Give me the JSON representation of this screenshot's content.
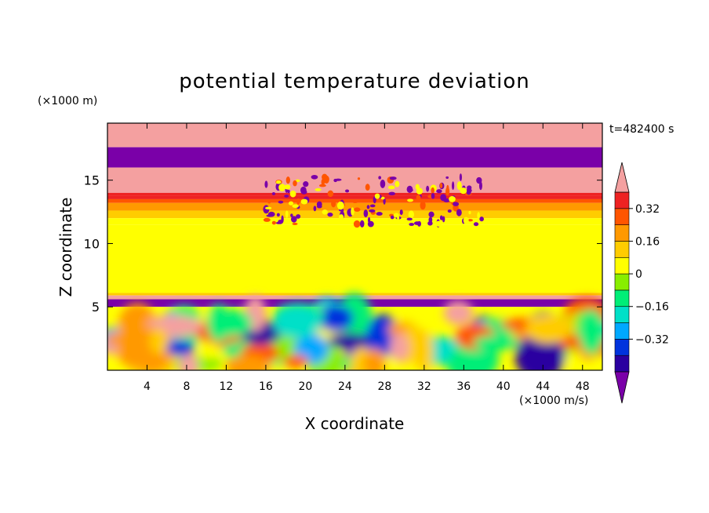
{
  "chart_data": {
    "type": "heatmap",
    "title": "potential temperature deviation",
    "xlabel": "X coordinate",
    "ylabel": "Z coordinate",
    "x_unit": "(×1000 m/s)",
    "y_unit": "(×1000 m)",
    "time_label": "t=482400 s",
    "xlim": [
      0,
      50
    ],
    "ylim": [
      0,
      19.5
    ],
    "x_ticks": [
      4,
      8,
      12,
      16,
      20,
      24,
      28,
      32,
      36,
      40,
      44,
      48
    ],
    "y_ticks": [
      5,
      10,
      15
    ],
    "colorbar": {
      "levels": [
        -0.48,
        -0.4,
        -0.32,
        -0.24,
        -0.16,
        -0.08,
        0,
        0.08,
        0.16,
        0.24,
        0.32,
        0.4
      ],
      "labels": [
        "0.32",
        "0.16",
        "0",
        "-0.16",
        "-0.32"
      ],
      "label_values": [
        0.32,
        0.16,
        0,
        -0.16,
        -0.32
      ],
      "colors": [
        "#7a00a8",
        "#2a00a0",
        "#0033dd",
        "#00a8ff",
        "#00e0c8",
        "#00ee77",
        "#88ee00",
        "#ffff00",
        "#ffcc00",
        "#ff9900",
        "#ff5500",
        "#ee2222",
        "#f4a0a0"
      ],
      "extend": "both"
    },
    "layers": [
      {
        "z": [
          17.6,
          19.5
        ],
        "value": 0.5,
        "note_color": "#f4a0a0"
      },
      {
        "z": [
          16,
          17.6
        ],
        "value": -0.5
      },
      {
        "z": [
          14,
          16
        ],
        "value": 0.5
      },
      {
        "z": [
          13.8,
          14
        ],
        "value": 0.36
      },
      {
        "z": [
          13.5,
          13.8
        ],
        "value": 0.34
      },
      {
        "z": [
          13.2,
          13.5
        ],
        "value": 0.28
      },
      {
        "z": [
          12.6,
          13.2
        ],
        "value": 0.2
      },
      {
        "z": [
          12,
          12.6
        ],
        "value": 0.12
      },
      {
        "z": [
          11.5,
          12
        ],
        "value": 0.04
      },
      {
        "z": [
          6.1,
          11.5
        ],
        "value": 0.02
      },
      {
        "z": [
          5.9,
          6.1
        ],
        "value": 0.12
      },
      {
        "z": [
          5.6,
          5.9
        ],
        "value": 0.5
      },
      {
        "z": [
          5.0,
          5.6
        ],
        "value": -0.5
      },
      {
        "z": [
          0,
          5.0
        ],
        "value": "turbulent mixed layer (-0.48 to 0.48)"
      }
    ]
  }
}
